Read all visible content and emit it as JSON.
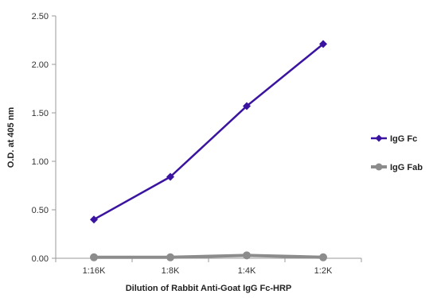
{
  "chart_data": {
    "type": "line",
    "title": "",
    "xlabel": "Dilution of Rabbit Anti-Goat IgG Fc-HRP",
    "ylabel": "O.D. at 405 nm",
    "categories": [
      "1:16K",
      "1:8K",
      "1:4K",
      "1:2K"
    ],
    "ylim": [
      0,
      2.5
    ],
    "yticks": [
      "0.00",
      "0.50",
      "1.00",
      "1.50",
      "2.00",
      "2.50"
    ],
    "grid": false,
    "legend": "right",
    "series": [
      {
        "name": "IgG Fc",
        "values": [
          0.4,
          0.84,
          1.57,
          2.21
        ],
        "color": "#3a14a0",
        "marker": "diamond"
      },
      {
        "name": "IgG Fab",
        "values": [
          0.01,
          0.01,
          0.03,
          0.01
        ],
        "color": "#8c8c8c",
        "marker": "circle"
      }
    ]
  }
}
